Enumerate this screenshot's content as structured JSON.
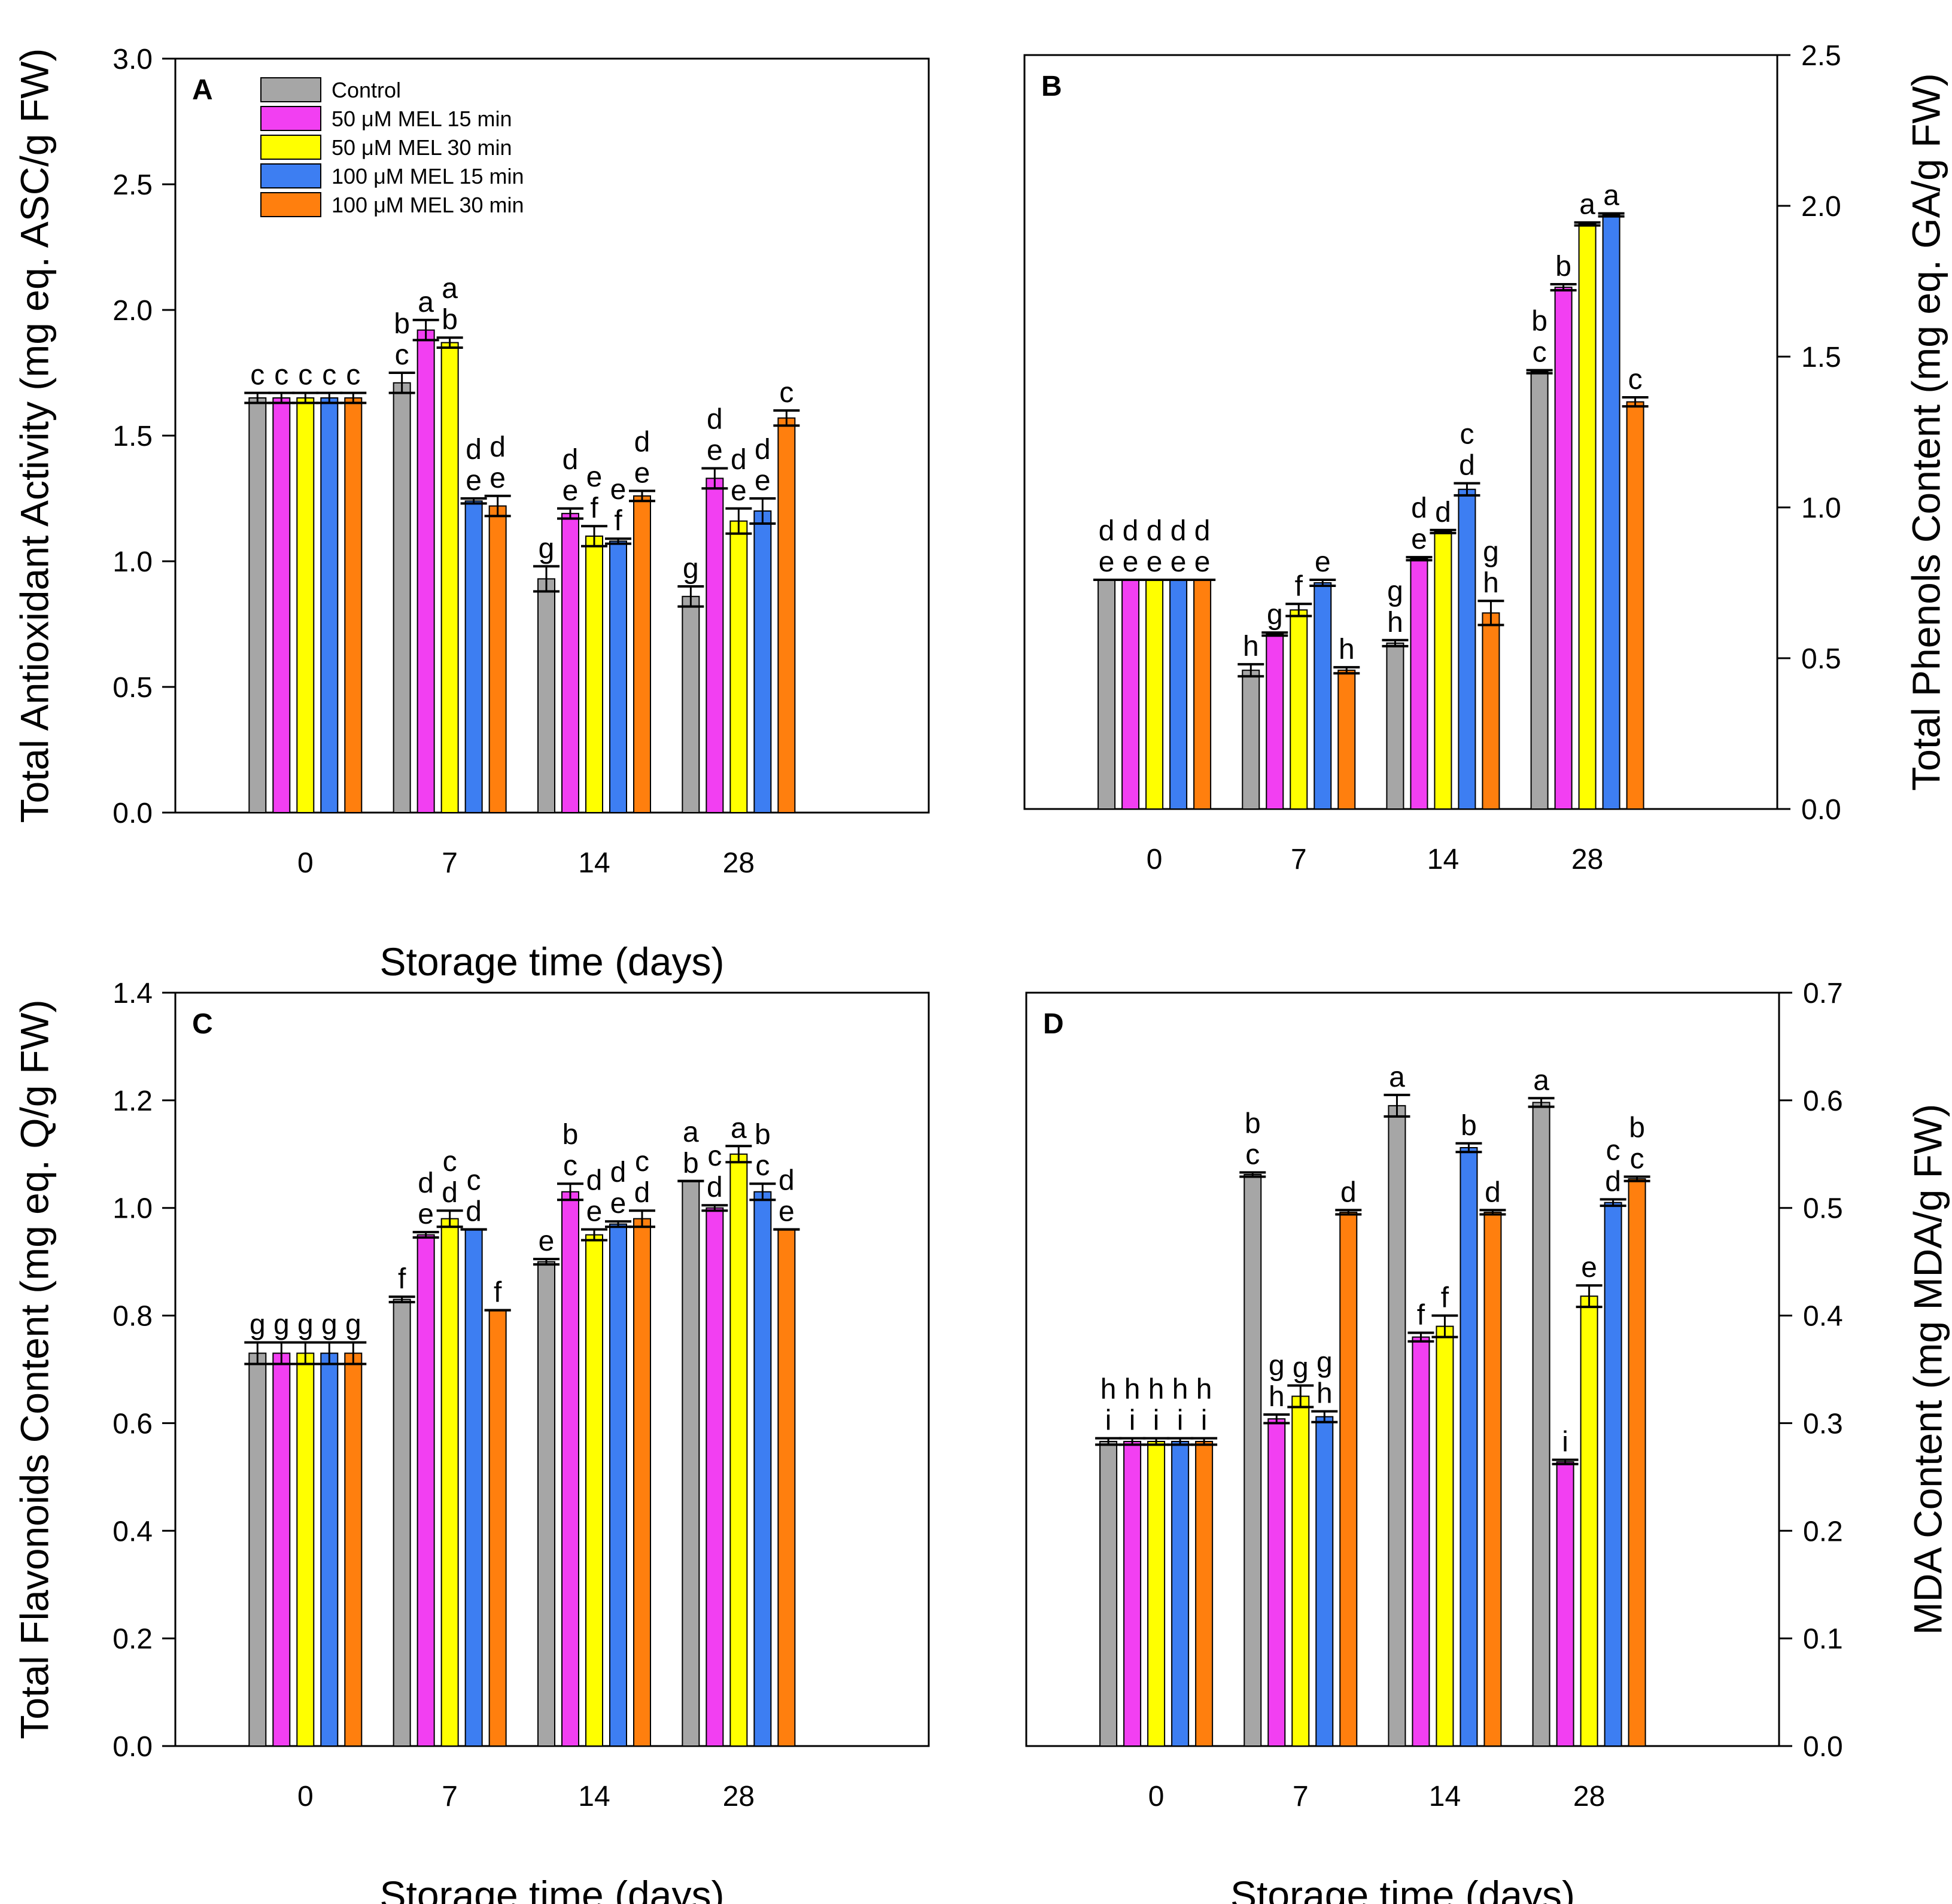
{
  "legend": [
    {
      "key": "control",
      "label": "Control",
      "color": "#a6a6a6"
    },
    {
      "key": "mel50_15",
      "label": "50 μM MEL 15 min",
      "color": "#f23ff2"
    },
    {
      "key": "mel50_30",
      "label": "50 μM MEL 30 min",
      "color": "#ffff00"
    },
    {
      "key": "mel100_15",
      "label": "100 μM MEL 15 min",
      "color": "#3d7ef2"
    },
    {
      "key": "mel100_30",
      "label": "100 μM MEL 30 min",
      "color": "#ff7f0e"
    }
  ],
  "chart_data": [
    {
      "id": "A",
      "panel_label": "A",
      "type": "bar",
      "title": "",
      "xlabel": "Storage time (days)",
      "ylabel": "Total Antioxidant Activity (mg eq. ASC/g FW)",
      "y_axis_side": "left",
      "ylim": [
        0,
        3.0
      ],
      "yticks": [
        "0.0",
        "0.5",
        "1.0",
        "1.5",
        "2.0",
        "2.5",
        "3.0"
      ],
      "categories": [
        "0",
        "7",
        "14",
        "28"
      ],
      "legend_position": "top-left",
      "series": [
        {
          "name": "Control",
          "values": [
            1.65,
            1.71,
            0.93,
            0.86
          ],
          "errors": [
            0.02,
            0.04,
            0.05,
            0.04
          ],
          "labels": [
            "c",
            "b\nc",
            "g",
            "g"
          ]
        },
        {
          "name": "50 μM MEL 15 min",
          "values": [
            1.65,
            1.92,
            1.19,
            1.33
          ],
          "errors": [
            0.02,
            0.04,
            0.02,
            0.04
          ],
          "labels": [
            "c",
            "a",
            "d\ne",
            "d\ne"
          ]
        },
        {
          "name": "50 μM MEL 30 min",
          "values": [
            1.65,
            1.87,
            1.1,
            1.16
          ],
          "errors": [
            0.02,
            0.02,
            0.04,
            0.05
          ],
          "labels": [
            "c",
            "a\nb",
            "e\nf",
            "d\ne"
          ]
        },
        {
          "name": "100 μM MEL 15 min",
          "values": [
            1.65,
            1.24,
            1.08,
            1.2
          ],
          "errors": [
            0.02,
            0.01,
            0.01,
            0.05
          ],
          "labels": [
            "c",
            "d\ne",
            "e\nf",
            "d\ne"
          ]
        },
        {
          "name": "100 μM MEL 30 min",
          "values": [
            1.65,
            1.22,
            1.26,
            1.57
          ],
          "errors": [
            0.02,
            0.04,
            0.02,
            0.03
          ],
          "labels": [
            "c",
            "d\ne",
            "d\ne",
            "c"
          ]
        }
      ]
    },
    {
      "id": "B",
      "panel_label": "B",
      "type": "bar",
      "title": "",
      "xlabel": "",
      "ylabel": "Total Phenols Content (mg eq. GA/g FW)",
      "y_axis_side": "right",
      "ylim": [
        0,
        2.5
      ],
      "yticks": [
        "0.0",
        "0.5",
        "1.0",
        "1.5",
        "2.0",
        "2.5"
      ],
      "categories": [
        "0",
        "7",
        "14",
        "28"
      ],
      "series": [
        {
          "name": "Control",
          "values": [
            0.76,
            0.46,
            0.55,
            1.45
          ],
          "errors": [
            0.0,
            0.02,
            0.01,
            0.005
          ],
          "labels": [
            "d\ne",
            "h",
            "g\nh",
            "b\nc"
          ]
        },
        {
          "name": "50 μM MEL 15 min",
          "values": [
            0.76,
            0.58,
            0.83,
            1.73
          ],
          "errors": [
            0.0,
            0.005,
            0.005,
            0.01
          ],
          "labels": [
            "d\ne",
            "g",
            "d\ne",
            "b"
          ]
        },
        {
          "name": "50 μM MEL 30 min",
          "values": [
            0.76,
            0.66,
            0.92,
            1.94
          ],
          "errors": [
            0.0,
            0.02,
            0.005,
            0.005
          ],
          "labels": [
            "d\ne",
            "f",
            "d",
            "a"
          ]
        },
        {
          "name": "100 μM MEL 15 min",
          "values": [
            0.76,
            0.75,
            1.06,
            1.97
          ],
          "errors": [
            0.0,
            0.01,
            0.02,
            0.005
          ],
          "labels": [
            "d\ne",
            "e",
            "c\nd",
            "a"
          ]
        },
        {
          "name": "100 μM MEL 30 min",
          "values": [
            0.76,
            0.46,
            0.65,
            1.35
          ],
          "errors": [
            0.0,
            0.01,
            0.04,
            0.015
          ],
          "labels": [
            "d\ne",
            "h",
            "g\nh",
            "c"
          ]
        }
      ]
    },
    {
      "id": "C",
      "panel_label": "C",
      "type": "bar",
      "title": "",
      "xlabel": "Storage time (days)",
      "ylabel": "Total Flavonoids Content (mg eq. Q/g FW)",
      "y_axis_side": "left",
      "ylim": [
        0,
        1.4
      ],
      "yticks": [
        "0.0",
        "0.2",
        "0.4",
        "0.6",
        "0.8",
        "1.0",
        "1.2",
        "1.4"
      ],
      "categories": [
        "0",
        "7",
        "14",
        "28"
      ],
      "series": [
        {
          "name": "Control",
          "values": [
            0.73,
            0.83,
            0.9,
            1.05
          ],
          "errors": [
            0.02,
            0.005,
            0.005,
            0.0
          ],
          "labels": [
            "g",
            "f",
            "e",
            "a\nb"
          ]
        },
        {
          "name": "50 μM MEL 15 min",
          "values": [
            0.73,
            0.95,
            1.03,
            1.0
          ],
          "errors": [
            0.02,
            0.005,
            0.015,
            0.005
          ],
          "labels": [
            "g",
            "d\ne",
            "b\nc",
            "c\nd"
          ]
        },
        {
          "name": "50 μM MEL 30 min",
          "values": [
            0.73,
            0.98,
            0.95,
            1.1
          ],
          "errors": [
            0.02,
            0.015,
            0.01,
            0.015
          ],
          "labels": [
            "g",
            "c\nd",
            "d\ne",
            "a"
          ]
        },
        {
          "name": "100 μM MEL 15 min",
          "values": [
            0.73,
            0.96,
            0.97,
            1.03
          ],
          "errors": [
            0.02,
            0.0,
            0.005,
            0.015
          ],
          "labels": [
            "g",
            "c\nd",
            "d\ne",
            "b\nc"
          ]
        },
        {
          "name": "100 μM MEL 30 min",
          "values": [
            0.73,
            0.81,
            0.98,
            0.96
          ],
          "errors": [
            0.02,
            0.0,
            0.015,
            0.0
          ],
          "labels": [
            "g",
            "f",
            "c\nd",
            "d\ne"
          ]
        }
      ]
    },
    {
      "id": "D",
      "panel_label": "D",
      "type": "bar",
      "title": "",
      "xlabel": "Storage time (days)",
      "ylabel": "MDA Content (mg MDA/g FW)",
      "y_axis_side": "right",
      "ylim": [
        0,
        0.7
      ],
      "yticks": [
        "0.0",
        "0.1",
        "0.2",
        "0.3",
        "0.4",
        "0.5",
        "0.6",
        "0.7"
      ],
      "categories": [
        "0",
        "7",
        "14",
        "28"
      ],
      "series": [
        {
          "name": "Control",
          "values": [
            0.283,
            0.531,
            0.595,
            0.598
          ],
          "errors": [
            0.003,
            0.002,
            0.01,
            0.004
          ],
          "labels": [
            "h\ni",
            "b\nc",
            "a",
            "a"
          ]
        },
        {
          "name": "50 μM MEL 15 min",
          "values": [
            0.283,
            0.304,
            0.38,
            0.264
          ],
          "errors": [
            0.003,
            0.004,
            0.004,
            0.002
          ],
          "labels": [
            "h\ni",
            "g\nh",
            "f",
            "i"
          ]
        },
        {
          "name": "50 μM MEL 30 min",
          "values": [
            0.283,
            0.325,
            0.39,
            0.418
          ],
          "errors": [
            0.003,
            0.01,
            0.01,
            0.01
          ],
          "labels": [
            "h\ni",
            "g",
            "f",
            "e"
          ]
        },
        {
          "name": "100 μM MEL 15 min",
          "values": [
            0.283,
            0.306,
            0.556,
            0.505
          ],
          "errors": [
            0.003,
            0.005,
            0.004,
            0.003
          ],
          "labels": [
            "h\ni",
            "g\nh",
            "b",
            "c\nd"
          ]
        },
        {
          "name": "100 μM MEL 30 min",
          "values": [
            0.283,
            0.496,
            0.496,
            0.527
          ],
          "errors": [
            0.003,
            0.002,
            0.002,
            0.002
          ],
          "labels": [
            "h\ni",
            "d",
            "d",
            "b\nc"
          ]
        }
      ]
    }
  ]
}
